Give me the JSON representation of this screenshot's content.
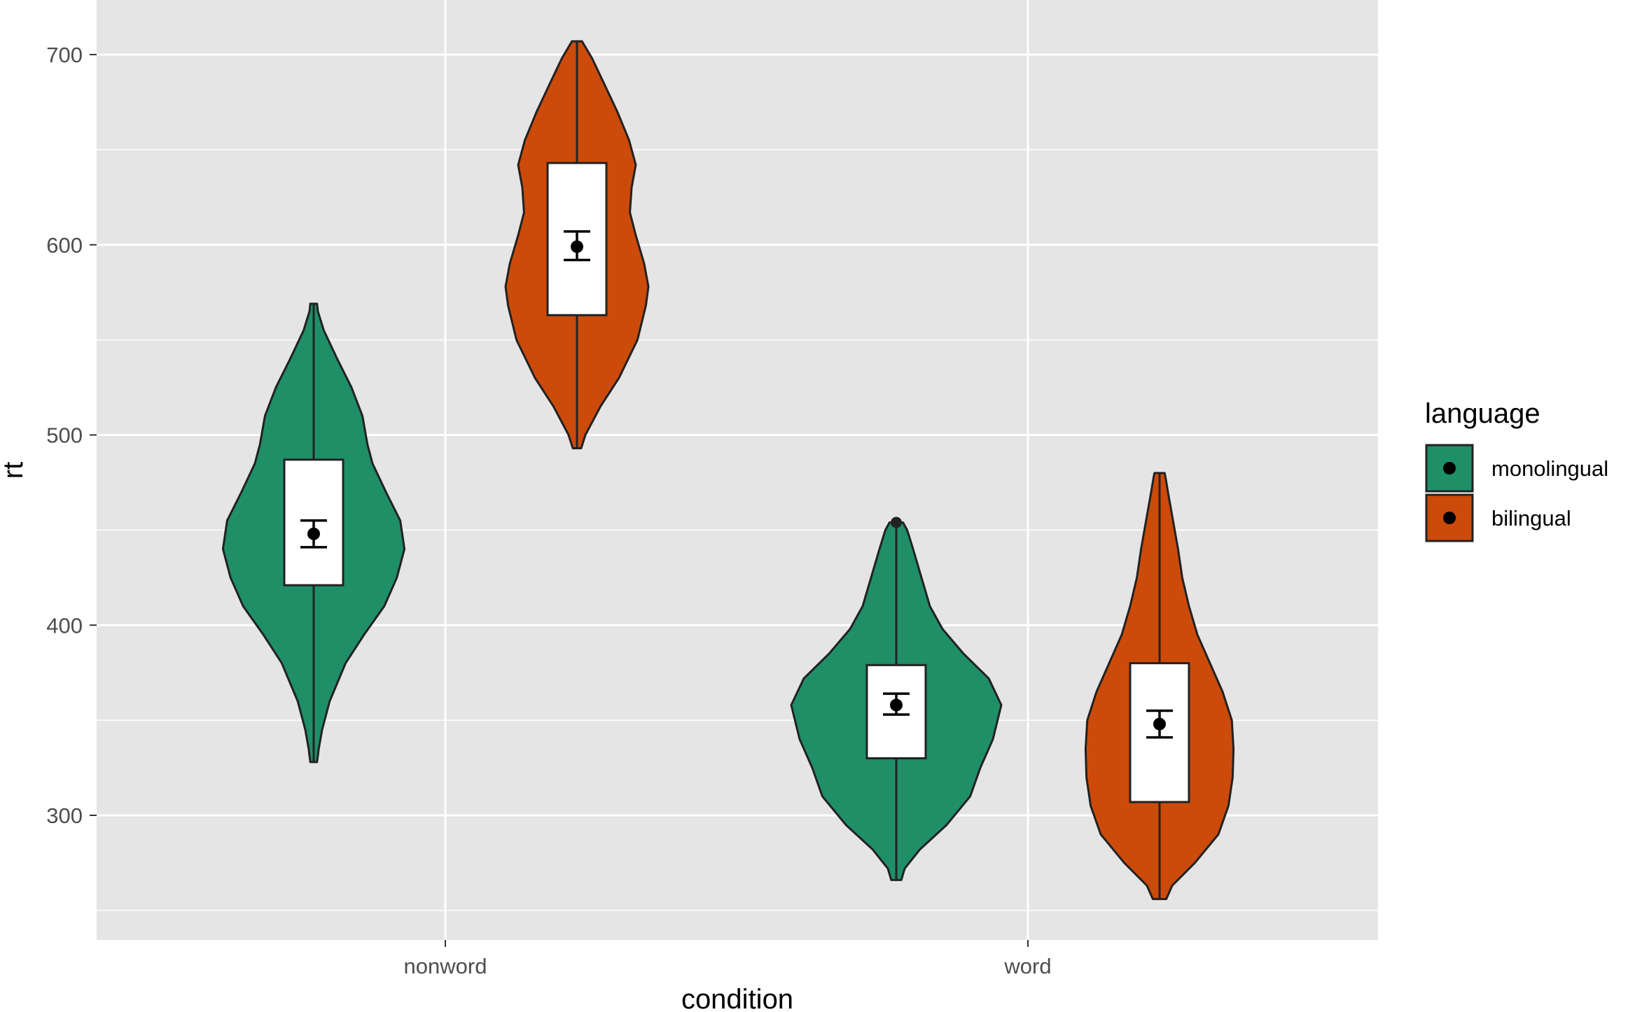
{
  "chart_data": {
    "type": "violin",
    "xlabel": "condition",
    "ylabel": "rt",
    "categories": [
      "nonword",
      "word"
    ],
    "y_ticks": [
      300,
      400,
      500,
      600,
      700
    ],
    "ylim": [
      235,
      710
    ],
    "grid": true,
    "legend": {
      "title": "language",
      "placement": "right",
      "items": [
        {
          "label": "monolingual",
          "color": "#1b9e77"
        },
        {
          "label": "bilingual",
          "color": "#d95f02"
        }
      ]
    },
    "series": [
      {
        "name": "monolingual",
        "color": "#1f8f68",
        "groups": [
          {
            "category": "nonword",
            "min": 328,
            "max": 569,
            "box": {
              "q1": 421,
              "median": 446,
              "q3": 487
            },
            "mean": 448,
            "ci": [
              441,
              455
            ],
            "outliers": [],
            "density": [
              [
                328,
                4
              ],
              [
                335,
                6
              ],
              [
                345,
                10
              ],
              [
                360,
                19
              ],
              [
                380,
                38
              ],
              [
                395,
                60
              ],
              [
                410,
                84
              ],
              [
                425,
                99
              ],
              [
                440,
                108
              ],
              [
                455,
                103
              ],
              [
                470,
                86
              ],
              [
                485,
                70
              ],
              [
                495,
                64
              ],
              [
                510,
                58
              ],
              [
                525,
                45
              ],
              [
                540,
                28
              ],
              [
                555,
                12
              ],
              [
                565,
                5
              ],
              [
                569,
                4
              ]
            ]
          },
          {
            "category": "word",
            "min": 266,
            "max": 454,
            "box": {
              "q1": 330,
              "median": 351,
              "q3": 379
            },
            "mean": 358,
            "ci": [
              353,
              364
            ],
            "outliers": [
              454
            ],
            "density": [
              [
                266,
                6
              ],
              [
                272,
                10
              ],
              [
                282,
                28
              ],
              [
                295,
                60
              ],
              [
                310,
                88
              ],
              [
                325,
                100
              ],
              [
                340,
                115
              ],
              [
                358,
                125
              ],
              [
                372,
                110
              ],
              [
                385,
                80
              ],
              [
                398,
                55
              ],
              [
                410,
                40
              ],
              [
                425,
                30
              ],
              [
                440,
                20
              ],
              [
                450,
                13
              ],
              [
                454,
                8
              ]
            ]
          }
        ]
      },
      {
        "name": "bilingual",
        "color": "#cc4b0a",
        "groups": [
          {
            "category": "nonword",
            "min": 493,
            "max": 707,
            "box": {
              "q1": 563,
              "median": 600,
              "q3": 643
            },
            "mean": 599,
            "ci": [
              592,
              607
            ],
            "outliers": [],
            "density": [
              [
                493,
                5
              ],
              [
                500,
                10
              ],
              [
                515,
                28
              ],
              [
                530,
                50
              ],
              [
                550,
                72
              ],
              [
                568,
                82
              ],
              [
                578,
                85
              ],
              [
                590,
                80
              ],
              [
                605,
                70
              ],
              [
                617,
                63
              ],
              [
                630,
                65
              ],
              [
                642,
                70
              ],
              [
                655,
                62
              ],
              [
                670,
                48
              ],
              [
                685,
                32
              ],
              [
                698,
                18
              ],
              [
                704,
                10
              ],
              [
                707,
                6
              ]
            ]
          },
          {
            "category": "word",
            "min": 256,
            "max": 480,
            "box": {
              "q1": 307,
              "median": 330,
              "q3": 380
            },
            "mean": 348,
            "ci": [
              341,
              355
            ],
            "outliers": [],
            "density": [
              [
                256,
                8
              ],
              [
                263,
                15
              ],
              [
                275,
                42
              ],
              [
                290,
                70
              ],
              [
                305,
                82
              ],
              [
                320,
                87
              ],
              [
                335,
                88
              ],
              [
                350,
                86
              ],
              [
                365,
                75
              ],
              [
                380,
                60
              ],
              [
                395,
                45
              ],
              [
                410,
                35
              ],
              [
                425,
                27
              ],
              [
                440,
                22
              ],
              [
                455,
                16
              ],
              [
                470,
                10
              ],
              [
                478,
                7
              ],
              [
                480,
                6
              ]
            ]
          }
        ]
      }
    ]
  }
}
